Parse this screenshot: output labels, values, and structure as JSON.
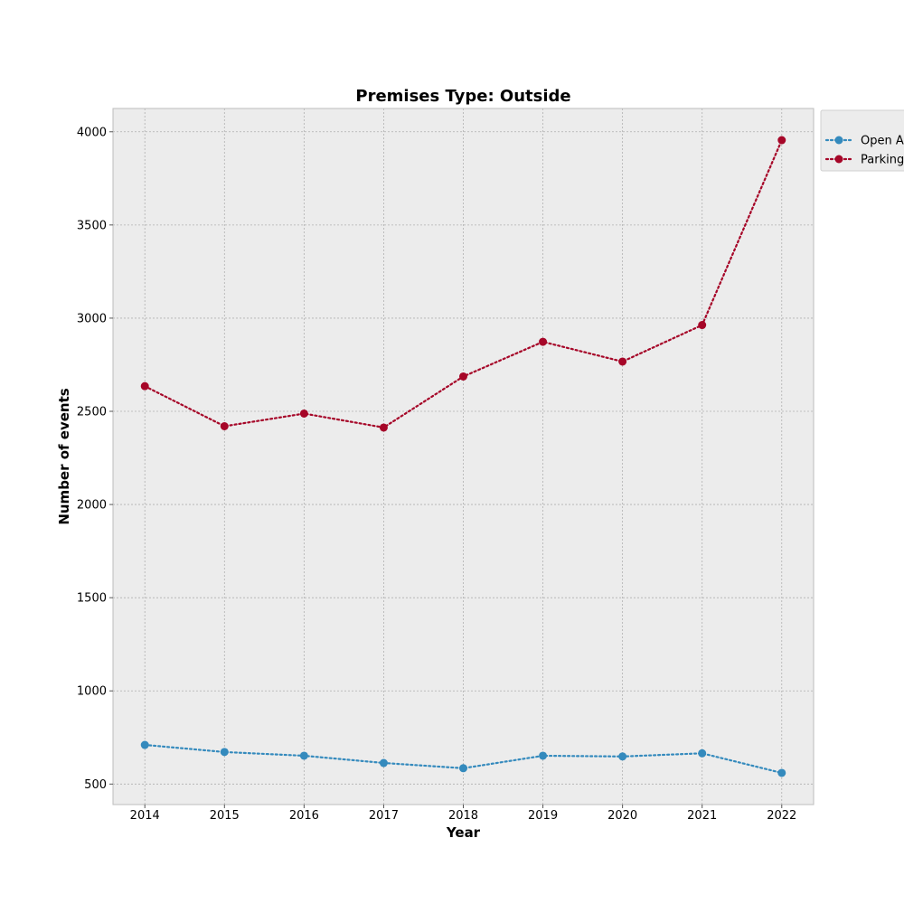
{
  "chart_data": {
    "type": "line",
    "title": "Premises Type: Outside",
    "xlabel": "Year",
    "ylabel": "Number of events",
    "x": [
      2014,
      2015,
      2016,
      2017,
      2018,
      2019,
      2020,
      2021,
      2022
    ],
    "x_ticks": [
      "2014",
      "2015",
      "2016",
      "2017",
      "2018",
      "2019",
      "2020",
      "2021",
      "2022"
    ],
    "y_ticks": [
      500,
      1000,
      1500,
      2000,
      2500,
      3000,
      3500,
      4000
    ],
    "xlim": [
      2013.6,
      2022.4
    ],
    "ylim": [
      390,
      4125
    ],
    "grid": true,
    "legend_position": "top-right outside",
    "plot_background": "#ececec",
    "series": [
      {
        "name": "Open A",
        "color": "#348abd",
        "line_style": "dotted",
        "marker": "circle",
        "values": [
          710,
          672,
          652,
          613,
          585,
          652,
          648,
          665,
          560
        ]
      },
      {
        "name": "Parking",
        "color": "#a60628",
        "line_style": "dotted",
        "marker": "circle",
        "values": [
          2635,
          2420,
          2488,
          2413,
          2687,
          2873,
          2767,
          2963,
          3955
        ]
      }
    ]
  }
}
